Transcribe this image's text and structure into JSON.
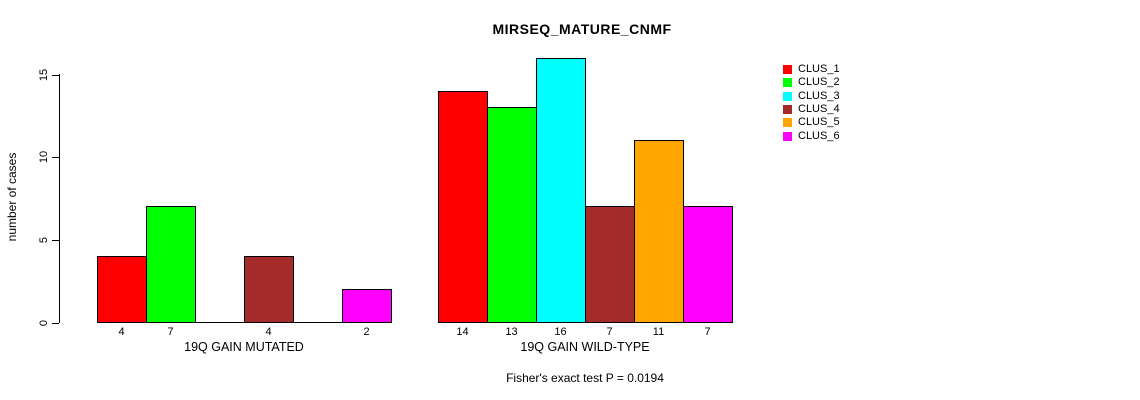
{
  "chart_data": {
    "type": "bar",
    "title": "MIRSEQ_MATURE_CNMF",
    "ylabel": "number of cases",
    "footnote": "Fisher's exact test P = 0.0194",
    "yticks": [
      0,
      5,
      10,
      15
    ],
    "ylim": [
      0,
      16
    ],
    "grid": false,
    "legend_position": "right",
    "bar_value_labels_shown_for_zero": false,
    "series": [
      {
        "name": "CLUS_1",
        "color": "#FF0000"
      },
      {
        "name": "CLUS_2",
        "color": "#00FF00"
      },
      {
        "name": "CLUS_3",
        "color": "#00FFFF"
      },
      {
        "name": "CLUS_4",
        "color": "#A52A2A"
      },
      {
        "name": "CLUS_5",
        "color": "#FFA500"
      },
      {
        "name": "CLUS_6",
        "color": "#FF00FF"
      }
    ],
    "groups": [
      {
        "label": "19Q GAIN MUTATED",
        "values": [
          4,
          7,
          0,
          4,
          0,
          2
        ]
      },
      {
        "label": "19Q GAIN WILD-TYPE",
        "values": [
          14,
          13,
          16,
          7,
          11,
          7
        ]
      }
    ]
  }
}
